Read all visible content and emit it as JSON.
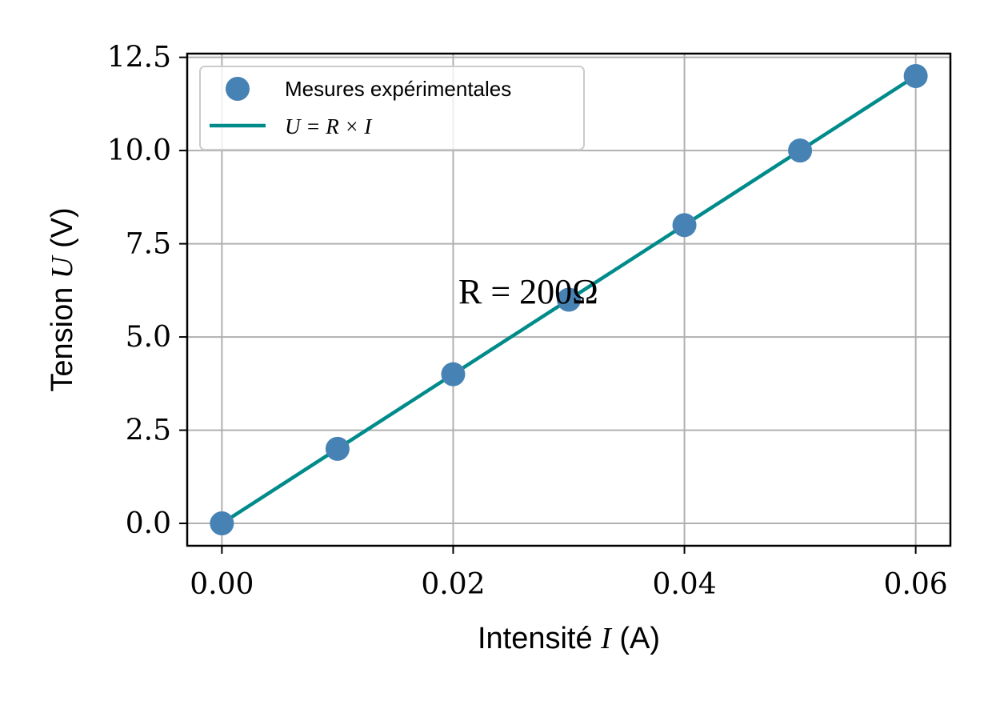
{
  "chart_data": {
    "type": "scatter",
    "xlabel_text": "Intensité ",
    "xlabel_symbol": "I",
    "xlabel_unit": " (A)",
    "ylabel_text": "Tension ",
    "ylabel_symbol": "U",
    "ylabel_unit": " (V)",
    "xlim": [
      -0.003,
      0.063
    ],
    "ylim": [
      -0.6,
      12.6
    ],
    "x_ticks": [
      0.0,
      0.02,
      0.04,
      0.06
    ],
    "x_tick_labels": [
      "0.00",
      "0.02",
      "0.04",
      "0.06"
    ],
    "y_ticks": [
      0.0,
      2.5,
      5.0,
      7.5,
      10.0,
      12.5
    ],
    "y_tick_labels": [
      "0.0",
      "2.5",
      "5.0",
      "7.5",
      "10.0",
      "12.5"
    ],
    "grid": true,
    "legend_position": "top-left",
    "series": [
      {
        "name": "Mesures expérimentales",
        "kind": "scatter",
        "color": "#4682b4",
        "x": [
          0.0,
          0.01,
          0.02,
          0.03,
          0.04,
          0.05,
          0.06
        ],
        "y": [
          0.0,
          2.0,
          4.0,
          6.0,
          8.0,
          10.0,
          12.0
        ]
      },
      {
        "name": "U = R × I",
        "kind": "line",
        "color": "#008b8b",
        "x": [
          0.0,
          0.06
        ],
        "y": [
          0.0,
          12.0
        ]
      }
    ],
    "annotations": [
      {
        "text": "R = 200Ω",
        "x": 0.0265,
        "y": 6.2
      }
    ]
  }
}
